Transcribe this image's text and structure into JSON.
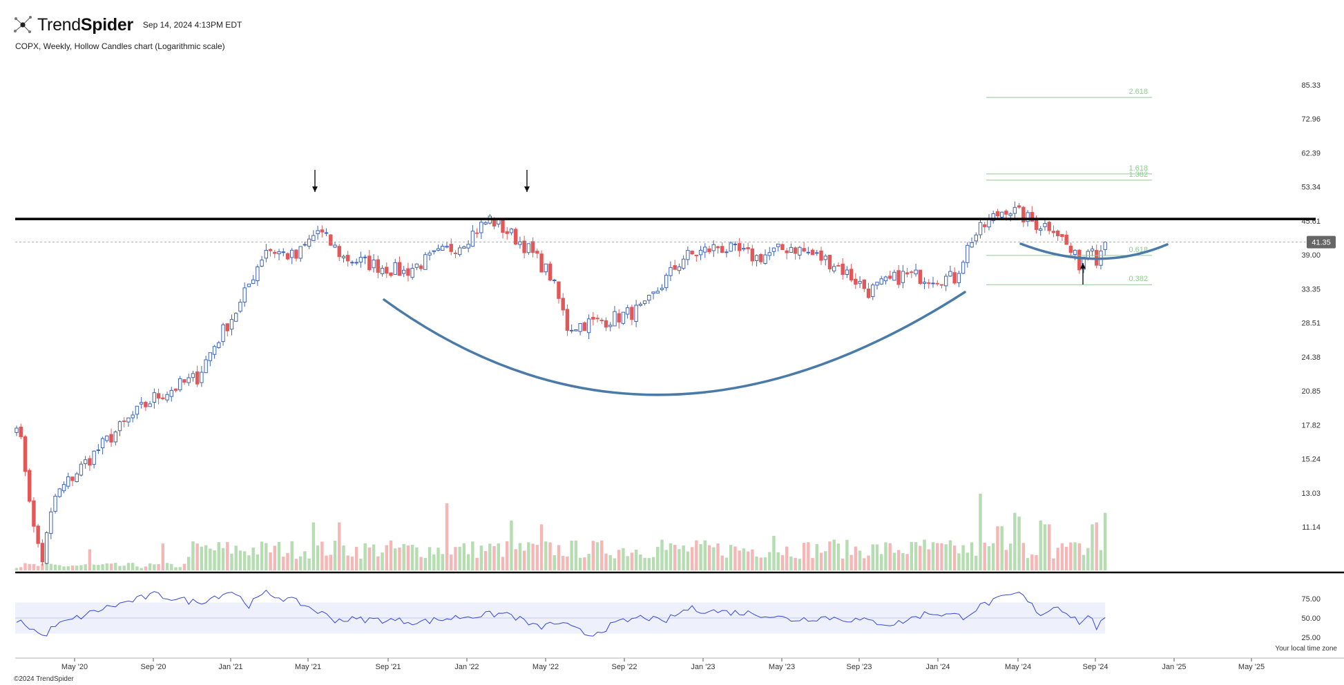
{
  "header": {
    "brand_light": "Trend",
    "brand_bold": "Spider",
    "timestamp": "Sep 14, 2024 4:13PM EDT",
    "chart_description": "COPX, Weekly, Hollow Candles chart (Logarithmic scale)"
  },
  "footer": {
    "copyright": "©2024 TrendSpider",
    "timezone_note": "Your local time zone"
  },
  "colors": {
    "up": "#3d63b8",
    "down": "#e25757",
    "vol_up": "#b6dcb2",
    "vol_down": "#f5b6b6",
    "rsi_line": "#3344dd",
    "rsi_band": "#eef0fb",
    "curve": "#4a7aa8",
    "fib": "#8fc98f",
    "resistance": "#000000",
    "price_badge": "#666666"
  },
  "chart_data": {
    "type": "candlestick",
    "title": "COPX, Weekly, Hollow Candles chart (Logarithmic scale)",
    "scale": "log",
    "last_price": "41.35",
    "resistance_level": 46.0,
    "y_ticks": [
      "85.33",
      "72.96",
      "62.39",
      "53.34",
      "45.61",
      "39.00",
      "33.35",
      "28.51",
      "24.38",
      "20.85",
      "17.82",
      "15.24",
      "13.03",
      "11.14"
    ],
    "x_ticks": [
      "May '20",
      "Sep '20",
      "Jan '21",
      "May '21",
      "Sep '21",
      "Jan '22",
      "May '22",
      "Sep '22",
      "Jan '23",
      "May '23",
      "Sep '23",
      "Jan '24",
      "May '24",
      "Sep '24",
      "Jan '25",
      "May '25"
    ],
    "fib_levels": [
      "2.618",
      "1.618",
      "1.382",
      "0.618",
      "0.382"
    ],
    "fib_values": [
      80.5,
      56.6,
      55.0,
      38.9,
      34.0
    ],
    "annotations": [
      "down-arrow near May '21 top",
      "down-arrow near Apr '22 top",
      "up-arrow near Aug '24 low",
      "cup curve Sep '21 – Mar '24",
      "handle curve May '24 – Nov '24"
    ],
    "close_anchors": [
      [
        0,
        18.2
      ],
      [
        4,
        11.0
      ],
      [
        6,
        9.6
      ],
      [
        9,
        12.8
      ],
      [
        18,
        15.6
      ],
      [
        32,
        20.2
      ],
      [
        42,
        22.2
      ],
      [
        52,
        31.0
      ],
      [
        58,
        40.2
      ],
      [
        65,
        38.5
      ],
      [
        70,
        43.6
      ],
      [
        76,
        38.5
      ],
      [
        90,
        36.0
      ],
      [
        103,
        41.0
      ],
      [
        110,
        46.0
      ],
      [
        118,
        40.8
      ],
      [
        124,
        35.5
      ],
      [
        128,
        28.0
      ],
      [
        138,
        29.0
      ],
      [
        146,
        30.5
      ],
      [
        155,
        38.5
      ],
      [
        163,
        40.5
      ],
      [
        172,
        38.5
      ],
      [
        180,
        40.5
      ],
      [
        190,
        37.5
      ],
      [
        198,
        33.0
      ],
      [
        206,
        35.5
      ],
      [
        218,
        35.0
      ],
      [
        222,
        42.0
      ],
      [
        226,
        45.5
      ],
      [
        230,
        48.5
      ],
      [
        237,
        45.0
      ],
      [
        241,
        44.5
      ],
      [
        245,
        39.5
      ],
      [
        247,
        37.5
      ],
      [
        250,
        41.5
      ],
      [
        251,
        38.5
      ],
      [
        253,
        41.35
      ]
    ],
    "rsi": {
      "ticks": [
        "75.00",
        "50.00",
        "25.00"
      ],
      "band": [
        30,
        70
      ],
      "anchors": [
        [
          0,
          48
        ],
        [
          4,
          35
        ],
        [
          6,
          26
        ],
        [
          9,
          40
        ],
        [
          20,
          62
        ],
        [
          32,
          80
        ],
        [
          42,
          70
        ],
        [
          50,
          85
        ],
        [
          54,
          67
        ],
        [
          58,
          82
        ],
        [
          66,
          69
        ],
        [
          74,
          48
        ],
        [
          84,
          48
        ],
        [
          94,
          45
        ],
        [
          104,
          52
        ],
        [
          114,
          56
        ],
        [
          121,
          38
        ],
        [
          126,
          44
        ],
        [
          133,
          28
        ],
        [
          140,
          44
        ],
        [
          146,
          52
        ],
        [
          150,
          44
        ],
        [
          156,
          62
        ],
        [
          164,
          58
        ],
        [
          172,
          56
        ],
        [
          180,
          48
        ],
        [
          188,
          51
        ],
        [
          196,
          47
        ],
        [
          204,
          42
        ],
        [
          212,
          57
        ],
        [
          220,
          52
        ],
        [
          225,
          68
        ],
        [
          233,
          82
        ],
        [
          238,
          55
        ],
        [
          242,
          66
        ],
        [
          247,
          45
        ],
        [
          250,
          52
        ],
        [
          251,
          38
        ],
        [
          253,
          47
        ]
      ]
    },
    "volume_spikes": [
      [
        17,
        11.0
      ],
      [
        34,
        14
      ],
      [
        69,
        25
      ],
      [
        75,
        25
      ],
      [
        100,
        35
      ],
      [
        115,
        26
      ],
      [
        122,
        24
      ],
      [
        150,
        16
      ],
      [
        176,
        18
      ],
      [
        190,
        16
      ],
      [
        211,
        16
      ],
      [
        224,
        40
      ],
      [
        228,
        23
      ],
      [
        229,
        23
      ],
      [
        232,
        30
      ],
      [
        233,
        28
      ],
      [
        238,
        26
      ],
      [
        239,
        24
      ],
      [
        240,
        24
      ],
      [
        250,
        24
      ],
      [
        251,
        25
      ],
      [
        253,
        30
      ]
    ]
  }
}
